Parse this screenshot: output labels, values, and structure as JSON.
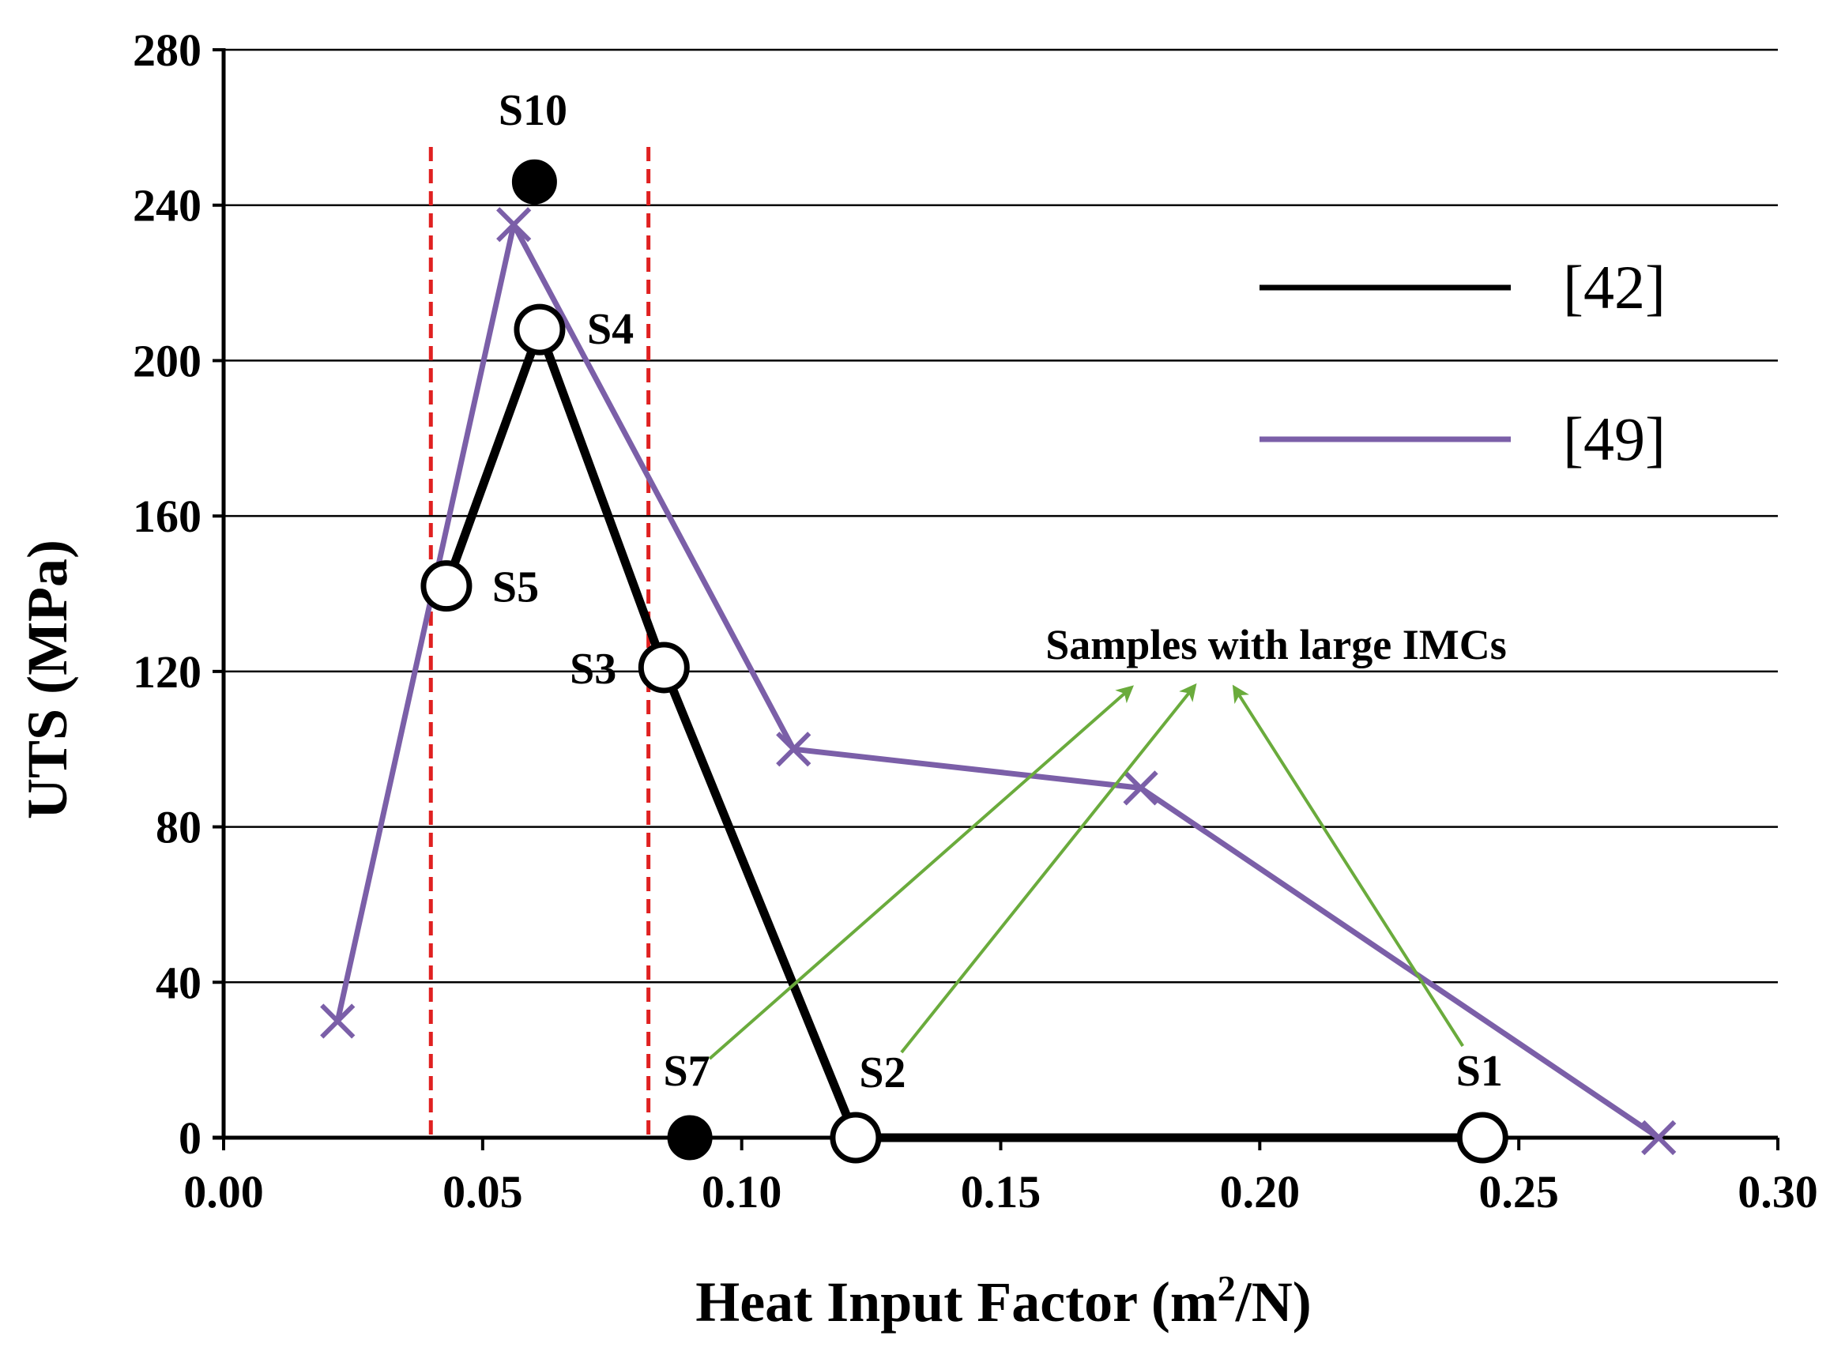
{
  "chart_data": {
    "type": "line",
    "title": "",
    "xlabel": "Heat Input Factor (m",
    "xlabel_sup": "2",
    "xlabel_tail": "/N)",
    "ylabel": "UTS (MPa)",
    "xlim": [
      0.0,
      0.3
    ],
    "ylim": [
      0,
      280
    ],
    "x_ticks": [
      0.0,
      0.05,
      0.1,
      0.15,
      0.2,
      0.25,
      0.3
    ],
    "x_tick_labels": [
      "0.00",
      "0.05",
      "0.10",
      "0.15",
      "0.20",
      "0.25",
      "0.30"
    ],
    "y_ticks": [
      0,
      40,
      80,
      120,
      160,
      200,
      240,
      280
    ],
    "y_tick_labels": [
      "0",
      "40",
      "80",
      "120",
      "160",
      "200",
      "240",
      "280"
    ],
    "grid": "horizontal",
    "legend_position": "right",
    "reference_lines_x": [
      0.04,
      0.082
    ],
    "series": [
      {
        "name": "[42]",
        "color": "#000000",
        "marker": "circle",
        "points": [
          {
            "label": "S5",
            "x": 0.043,
            "y": 142,
            "filled": false
          },
          {
            "label": "S4",
            "x": 0.061,
            "y": 208,
            "filled": false
          },
          {
            "label": "S3",
            "x": 0.085,
            "y": 121,
            "filled": false
          },
          {
            "label": "S2",
            "x": 0.122,
            "y": 0,
            "filled": false
          },
          {
            "label": "S1",
            "x": 0.243,
            "y": 0,
            "filled": false
          }
        ],
        "extra_points": [
          {
            "label": "S10",
            "x": 0.06,
            "y": 246,
            "filled": true
          },
          {
            "label": "S7",
            "x": 0.09,
            "y": 0,
            "filled": true
          }
        ]
      },
      {
        "name": "[49]",
        "color": "#7b5fa8",
        "marker": "x",
        "points": [
          {
            "x": 0.022,
            "y": 30
          },
          {
            "x": 0.056,
            "y": 235
          },
          {
            "x": 0.11,
            "y": 100
          },
          {
            "x": 0.177,
            "y": 90
          },
          {
            "x": 0.277,
            "y": 0
          }
        ]
      }
    ],
    "annotation": {
      "text": "Samples with large IMCs",
      "targets": [
        "S7",
        "S2",
        "S1"
      ]
    }
  },
  "colors": {
    "reference_line": "#e02020",
    "annotation_arrow": "#6aab3c",
    "grid": "#000000"
  }
}
